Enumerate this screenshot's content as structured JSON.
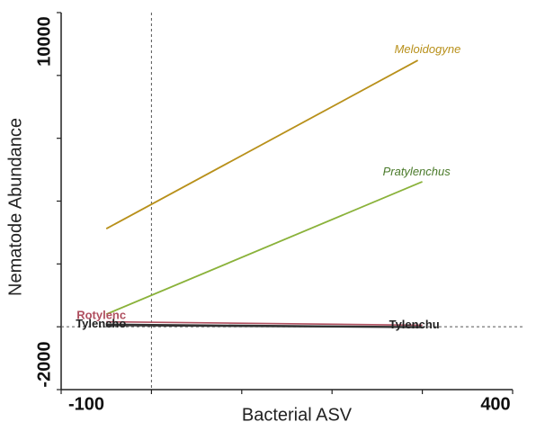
{
  "chart_data": {
    "type": "line",
    "xlabel": "Bacterial ASV",
    "ylabel": "Nematode Abundance",
    "xlim": [
      -100,
      400
    ],
    "ylim": [
      -2000,
      10000
    ],
    "x_ticks": [
      "-100",
      "400"
    ],
    "y_ticks": [
      "-2000",
      "10000"
    ],
    "reference_lines": {
      "x": 0,
      "y": 0
    },
    "series": [
      {
        "name": "Meloidogyne",
        "color": "#b8901a",
        "x": [
          -50,
          295
        ],
        "y": [
          3120,
          8480
        ]
      },
      {
        "name": "Pratylenchus",
        "color": "#8ab23a",
        "x": [
          -50,
          300
        ],
        "y": [
          400,
          4620
        ]
      },
      {
        "name": "Rotylenc",
        "color": "#b05060",
        "x": [
          -50,
          300
        ],
        "y": [
          160,
          50
        ]
      },
      {
        "name": "Tylencho",
        "color": "#333333",
        "x": [
          -50,
          300
        ],
        "y": [
          80,
          0
        ]
      },
      {
        "name": "Tylenchu",
        "color": "#333333",
        "x": [
          -50,
          300
        ],
        "y": [
          40,
          -20
        ]
      }
    ],
    "cluster_label_left": "Tylencho",
    "cluster_label_right": "Tylenchu"
  }
}
